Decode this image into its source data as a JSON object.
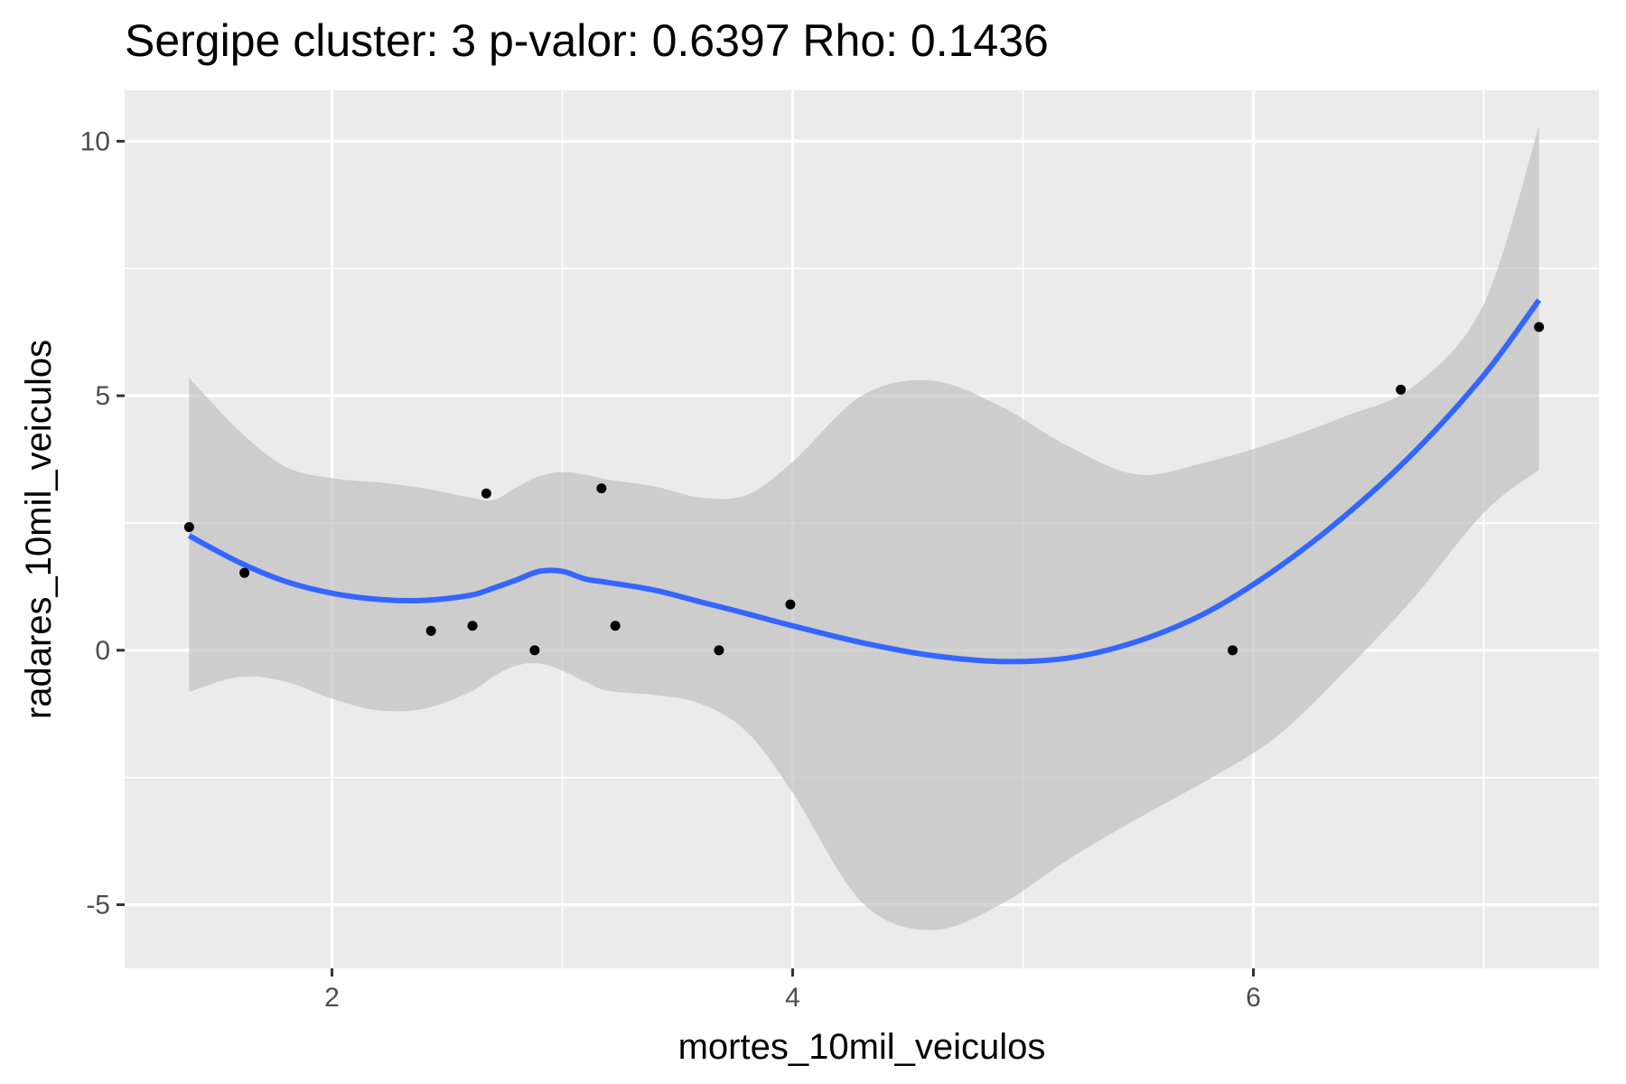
{
  "chart_data": {
    "type": "scatter",
    "title": "Sergipe cluster: 3 p-valor: 0.6397 Rho: 0.1436",
    "xlabel": "mortes_10mil_veiculos",
    "ylabel": "radares_10mil_veiculos",
    "xlim": [
      1.1,
      7.5
    ],
    "ylim": [
      -6.25,
      11.0
    ],
    "x_ticks": [
      2,
      4,
      6
    ],
    "x_tick_labels": [
      "2",
      "4",
      "6"
    ],
    "y_ticks": [
      -5,
      0,
      5,
      10
    ],
    "y_tick_labels": [
      "-5",
      "0",
      "5",
      "10"
    ],
    "grid": true,
    "colors": {
      "panel": "#ebebeb",
      "grid": "#ffffff",
      "points": "#000000",
      "smooth_line": "#3366ff",
      "confidence_band": "#bdbdbd"
    },
    "points": [
      {
        "x": 1.38,
        "y": 2.42
      },
      {
        "x": 1.62,
        "y": 1.52
      },
      {
        "x": 2.43,
        "y": 0.38
      },
      {
        "x": 2.61,
        "y": 0.48
      },
      {
        "x": 2.67,
        "y": 3.08
      },
      {
        "x": 2.88,
        "y": 0.0
      },
      {
        "x": 3.17,
        "y": 3.18
      },
      {
        "x": 3.23,
        "y": 0.48
      },
      {
        "x": 3.68,
        "y": 0.0
      },
      {
        "x": 3.99,
        "y": 0.9
      },
      {
        "x": 5.91,
        "y": 0.0
      },
      {
        "x": 6.64,
        "y": 5.12
      },
      {
        "x": 7.24,
        "y": 6.35
      }
    ],
    "smooth": {
      "x": [
        1.38,
        1.6,
        1.8,
        2.0,
        2.2,
        2.4,
        2.6,
        2.7,
        2.8,
        2.9,
        3.0,
        3.1,
        3.2,
        3.4,
        3.6,
        3.8,
        4.0,
        4.3,
        4.6,
        4.9,
        5.2,
        5.5,
        5.8,
        6.1,
        6.4,
        6.7,
        7.0,
        7.24
      ],
      "y": [
        2.25,
        1.72,
        1.35,
        1.12,
        1.0,
        0.98,
        1.08,
        1.22,
        1.38,
        1.55,
        1.55,
        1.4,
        1.33,
        1.18,
        0.95,
        0.72,
        0.48,
        0.15,
        -0.1,
        -0.22,
        -0.15,
        0.18,
        0.75,
        1.6,
        2.65,
        3.9,
        5.4,
        6.88
      ],
      "upper": [
        5.35,
        4.3,
        3.6,
        3.38,
        3.3,
        3.18,
        3.0,
        2.95,
        3.2,
        3.42,
        3.5,
        3.45,
        3.35,
        3.22,
        3.0,
        3.05,
        3.7,
        5.0,
        5.3,
        4.8,
        4.0,
        3.45,
        3.7,
        4.1,
        4.6,
        5.2,
        6.8,
        10.3
      ],
      "lower": [
        -0.82,
        -0.52,
        -0.62,
        -0.95,
        -1.18,
        -1.15,
        -0.82,
        -0.52,
        -0.3,
        -0.26,
        -0.4,
        -0.62,
        -0.8,
        -0.88,
        -1.05,
        -1.6,
        -2.8,
        -4.95,
        -5.5,
        -5.0,
        -4.1,
        -3.3,
        -2.55,
        -1.7,
        -0.4,
        1.05,
        2.7,
        3.55
      ]
    }
  }
}
